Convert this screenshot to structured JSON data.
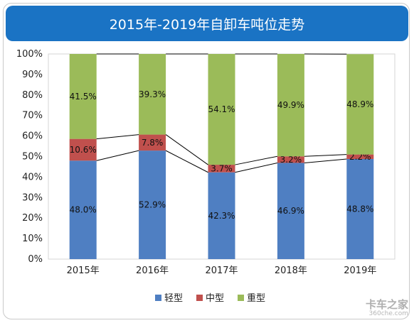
{
  "colors": {
    "title_bg": "#1a73c4",
    "light": "#4f7fc2",
    "medium": "#c0504d",
    "heavy": "#9bbb59"
  },
  "chart_data": {
    "type": "bar",
    "stacked": true,
    "title": "2015年-2019年自卸车吨位走势",
    "categories": [
      "2015年",
      "2016年",
      "2017年",
      "2018年",
      "2019年"
    ],
    "series": [
      {
        "name": "轻型",
        "values": [
          48.0,
          52.9,
          42.3,
          46.9,
          48.8
        ],
        "labels": [
          "48.0%",
          "52.9%",
          "42.3%",
          "46.9%",
          "48.8%"
        ]
      },
      {
        "name": "中型",
        "values": [
          10.6,
          7.8,
          3.7,
          3.2,
          2.2
        ],
        "labels": [
          "10.6%",
          "7.8%",
          "3.7%",
          "3.2%",
          "2.2%"
        ]
      },
      {
        "name": "重型",
        "values": [
          41.5,
          39.3,
          54.1,
          49.9,
          48.9
        ],
        "labels": [
          "41.5%",
          "39.3%",
          "54.1%",
          "49.9%",
          "48.9%"
        ]
      }
    ],
    "yticks": [
      "0%",
      "10%",
      "20%",
      "30%",
      "40%",
      "50%",
      "60%",
      "70%",
      "80%",
      "90%",
      "100%"
    ],
    "ylim": [
      0,
      100
    ],
    "legend_position": "bottom",
    "series_lines": true,
    "grid": false
  },
  "watermark": {
    "main": "卡车之家",
    "sub": "360che.com"
  }
}
